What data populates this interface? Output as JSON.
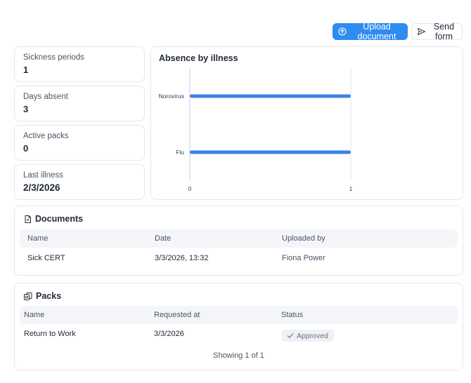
{
  "toolbar": {
    "upload_label": "Upload document",
    "send_label": "Send form",
    "upload_icon": "upload-icon",
    "send_icon": "send-icon",
    "accent": "#2f8cf0"
  },
  "stats": {
    "sickness_periods": {
      "label": "Sickness periods",
      "value": "1"
    },
    "days_absent": {
      "label": "Days absent",
      "value": "3"
    },
    "active_packs": {
      "label": "Active packs",
      "value": "0"
    },
    "last_illness": {
      "label": "Last illness",
      "value": "2/3/2026"
    }
  },
  "chart_title": "Absence by illness",
  "chart_data": {
    "type": "bar",
    "orientation": "horizontal",
    "title": "Absence by illness",
    "categories": [
      "Norovirus",
      "Flu"
    ],
    "values": [
      1,
      1
    ],
    "xlim": [
      0,
      1
    ],
    "xticks": [
      0,
      1
    ],
    "xlabel": "",
    "ylabel": "",
    "grid": "vertical",
    "bar_color": "#3b82e6"
  },
  "documents": {
    "title": "Documents",
    "icon": "document-icon",
    "columns": [
      "Name",
      "Date",
      "Uploaded by"
    ],
    "rows": [
      {
        "name": "Sick CERT",
        "date": "3/3/2026, 13:32",
        "uploaded_by": "Fiona Power"
      }
    ]
  },
  "packs": {
    "title": "Packs",
    "icon": "packs-icon",
    "columns": [
      "Name",
      "Requested at",
      "Status"
    ],
    "rows": [
      {
        "name": "Return to Work",
        "requested_at": "3/3/2026",
        "status": "Approved"
      }
    ],
    "pagination": "Showing 1 of 1"
  }
}
